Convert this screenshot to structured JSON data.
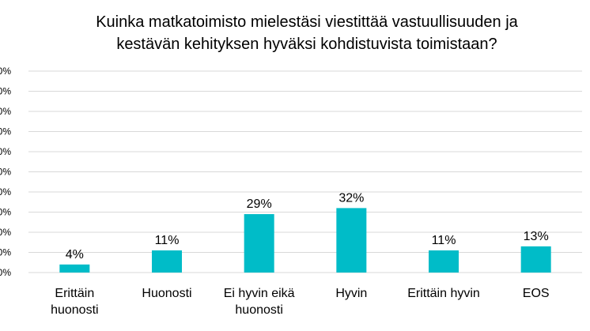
{
  "chart_data": {
    "type": "bar",
    "title_lines": [
      "Kuinka matkatoimisto mielestäsi viestittää vastuullisuuden ja",
      "kestävän kehityksen hyväksi kohdistuvista toimistaan?"
    ],
    "categories": [
      [
        "Erittäin",
        "huonosti"
      ],
      [
        "Huonosti"
      ],
      [
        "Ei hyvin eikä",
        "huonosti"
      ],
      [
        "Hyvin"
      ],
      [
        "Erittäin hyvin"
      ],
      [
        "EOS"
      ]
    ],
    "values": [
      4,
      11,
      29,
      32,
      11,
      13
    ],
    "data_labels": [
      "4%",
      "11%",
      "29%",
      "32%",
      "11%",
      "13%"
    ],
    "y_tick_labels": [
      "0%",
      "0%",
      "0%",
      "0%",
      "0%",
      "0%",
      "0%",
      "0%",
      "0%",
      "0%",
      "0%"
    ],
    "ylim": [
      0,
      100
    ],
    "grid": true,
    "legend": "none",
    "bar_color": "#00BCC8",
    "grid_color": "#D9D9D9"
  }
}
